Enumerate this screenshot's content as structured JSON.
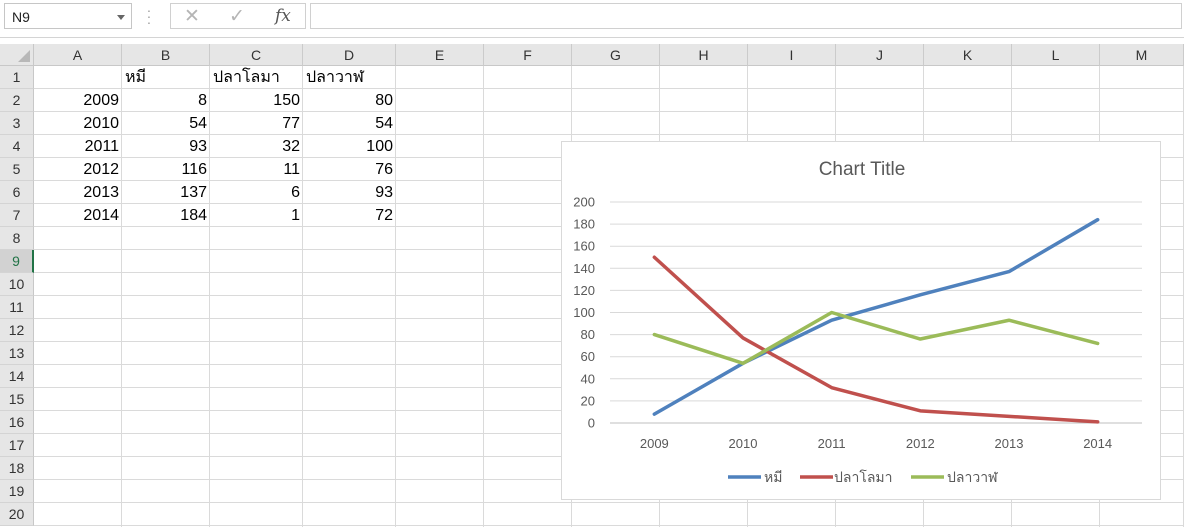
{
  "namebox": {
    "value": "N9"
  },
  "formula_bar": {
    "fx_label": "fx",
    "value": ""
  },
  "columns": [
    "A",
    "B",
    "C",
    "D",
    "E",
    "F",
    "G",
    "H",
    "I",
    "J",
    "K",
    "L",
    "M"
  ],
  "rows": [
    "1",
    "2",
    "3",
    "4",
    "5",
    "6",
    "7",
    "8",
    "9",
    "10",
    "11",
    "12",
    "13",
    "14",
    "15",
    "16",
    "17",
    "18",
    "19",
    "20"
  ],
  "active_row": "9",
  "sheet": {
    "headers": [
      "",
      "หมี",
      "ปลาโลมา",
      "ปลาวาฬ"
    ],
    "rows": [
      [
        "2009",
        "8",
        "150",
        "80"
      ],
      [
        "2010",
        "54",
        "77",
        "54"
      ],
      [
        "2011",
        "93",
        "32",
        "100"
      ],
      [
        "2012",
        "116",
        "11",
        "76"
      ],
      [
        "2013",
        "137",
        "6",
        "93"
      ],
      [
        "2014",
        "184",
        "1",
        "72"
      ]
    ]
  },
  "chart_data": {
    "type": "line",
    "title": "Chart Title",
    "categories": [
      "2009",
      "2010",
      "2011",
      "2012",
      "2013",
      "2014"
    ],
    "series": [
      {
        "name": "หมี",
        "values": [
          8,
          54,
          93,
          116,
          137,
          184
        ],
        "color": "#4f81bd"
      },
      {
        "name": "ปลาโลมา",
        "values": [
          150,
          77,
          32,
          11,
          6,
          1
        ],
        "color": "#c0504d"
      },
      {
        "name": "ปลาวาฬ",
        "values": [
          80,
          54,
          100,
          76,
          93,
          72
        ],
        "color": "#9bbb59"
      }
    ],
    "ylim": [
      0,
      200
    ],
    "yticks": [
      "0",
      "20",
      "40",
      "60",
      "80",
      "100",
      "120",
      "140",
      "160",
      "180",
      "200"
    ],
    "grid": true,
    "legend": "bottom"
  }
}
